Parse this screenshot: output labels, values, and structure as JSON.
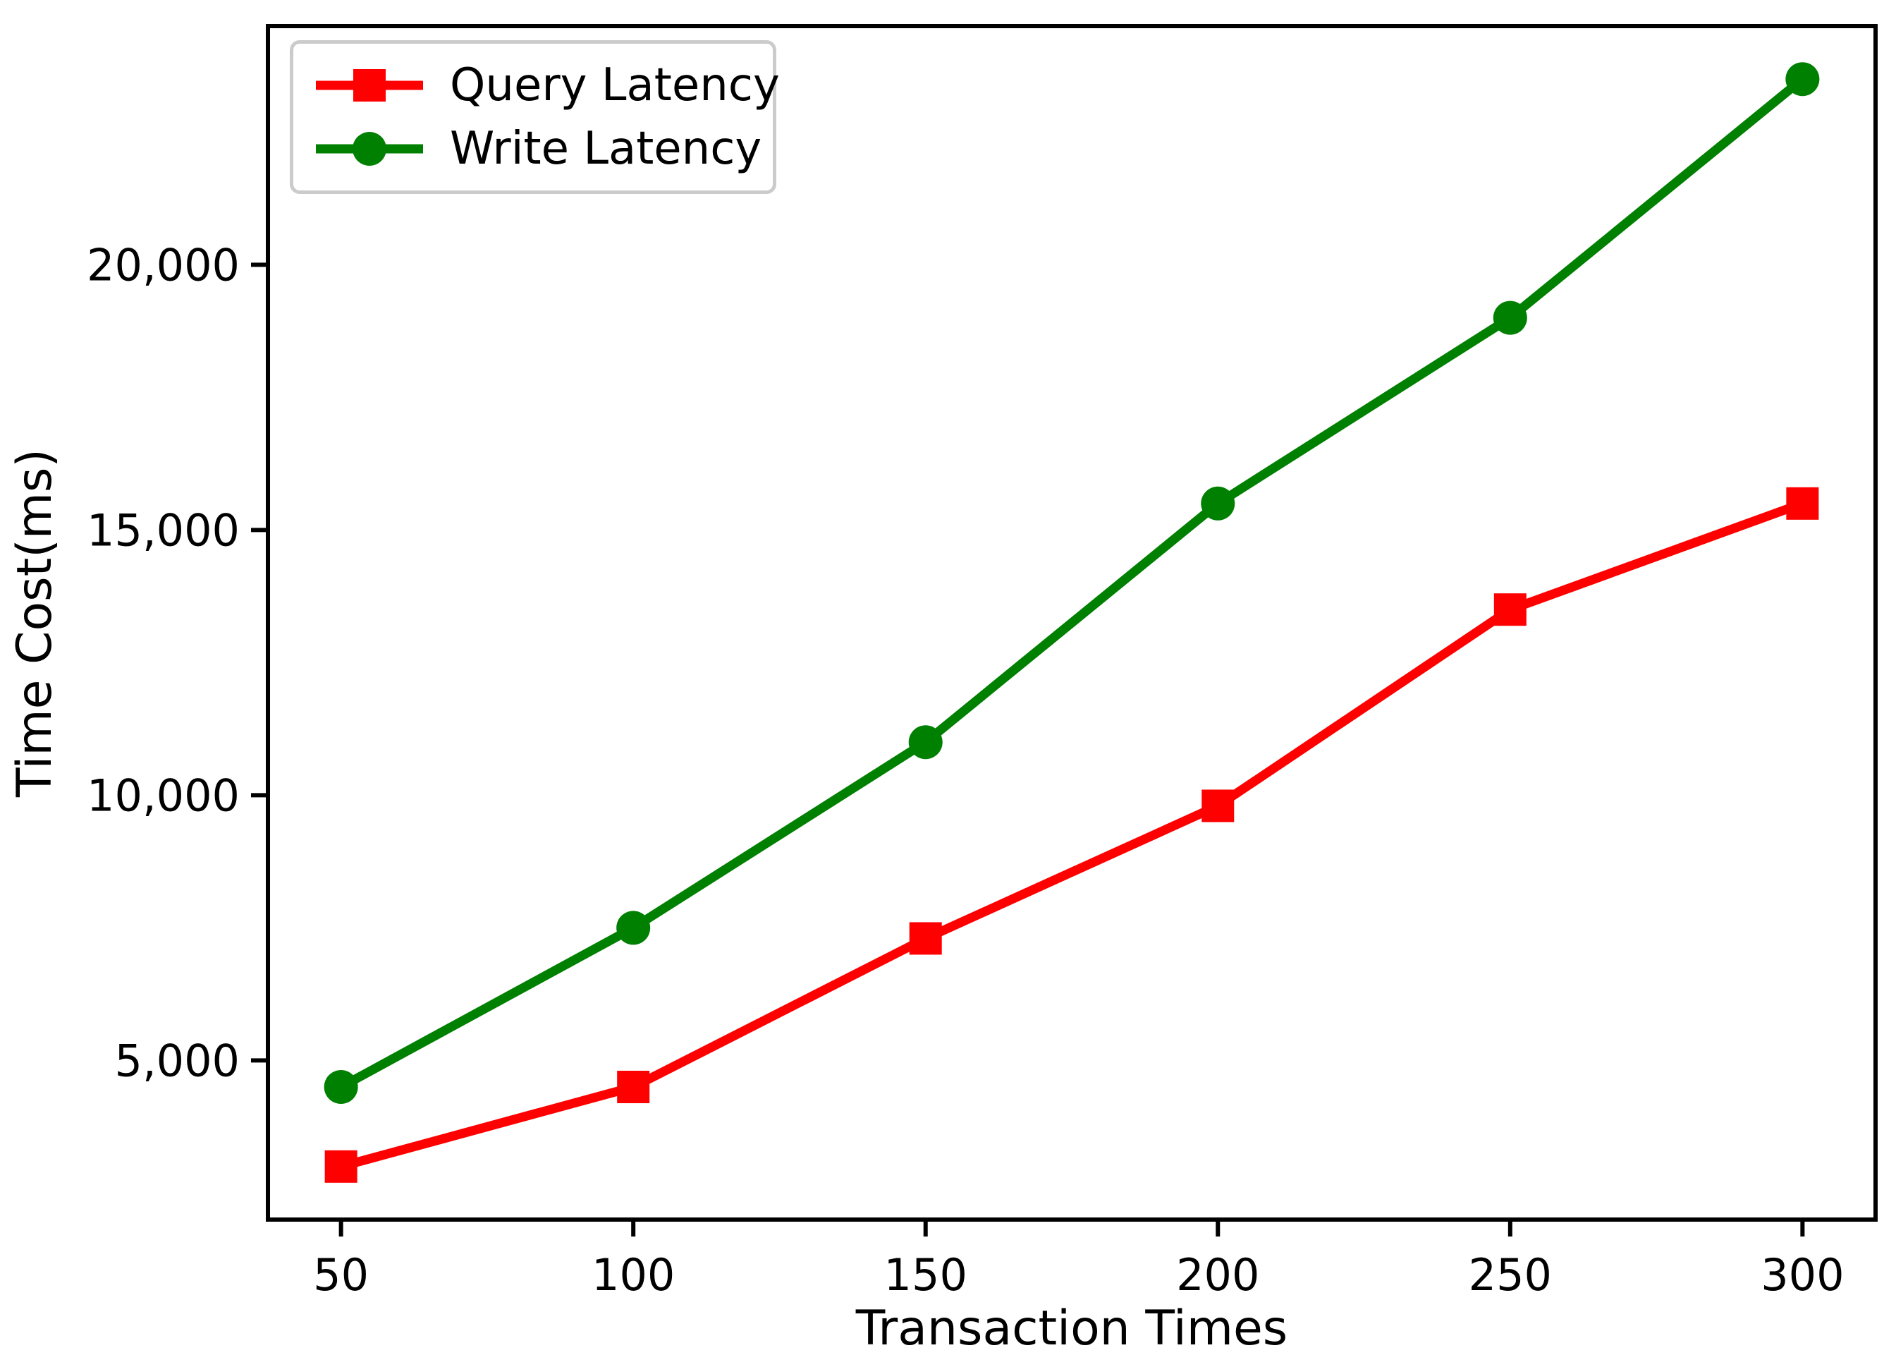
{
  "chart_data": {
    "type": "line",
    "title": "",
    "xlabel": "Transaction Times",
    "ylabel": "Time Cost(ms)",
    "x": [
      50,
      100,
      150,
      200,
      250,
      300
    ],
    "xtick_labels": [
      "50",
      "100",
      "150",
      "200",
      "250",
      "300"
    ],
    "yticks": [
      5000,
      10000,
      15000,
      20000
    ],
    "ytick_labels": [
      "5,000",
      "10,000",
      "15,000",
      "20,000"
    ],
    "xlim": [
      37.5,
      312.5
    ],
    "ylim": [
      2000,
      24500
    ],
    "grid": false,
    "legend_position": "upper left",
    "series": [
      {
        "name": "Query Latency",
        "color": "#ff0000",
        "marker": "square",
        "values": [
          3000,
          4500,
          7300,
          9800,
          13500,
          15500
        ]
      },
      {
        "name": "Write Latency",
        "color": "#008000",
        "marker": "circle",
        "values": [
          4500,
          7500,
          11000,
          15500,
          19000,
          23500
        ]
      }
    ]
  }
}
